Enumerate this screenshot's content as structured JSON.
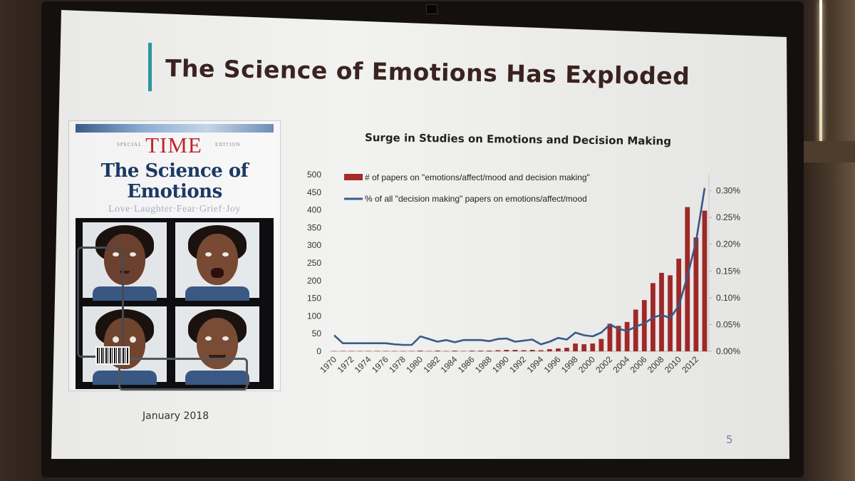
{
  "slide": {
    "title": "The Science of Emotions Has Exploded",
    "date": "January 2018",
    "page_number": "5"
  },
  "magazine": {
    "special": "SPECIAL",
    "brand": "TIME",
    "edition": "EDITION",
    "headline_line1": "The Science of",
    "headline_line2": "Emotions",
    "tagline": "Love·Laughter·Fear·Grief·Joy"
  },
  "colors": {
    "bar": "#a52a2a",
    "line": "#3b5b8c",
    "accent": "#2c9aa0",
    "title": "#3a2320"
  },
  "chart_data": {
    "type": "bar",
    "title": "Surge in Studies on Emotions and Decision Making",
    "xlabel": "",
    "ylabel": "",
    "ylim": [
      0,
      500
    ],
    "y2lim": [
      0,
      0.0033
    ],
    "y_ticks": [
      "0",
      "50",
      "100",
      "150",
      "200",
      "250",
      "300",
      "350",
      "400",
      "450",
      "500"
    ],
    "y2_ticks": [
      "0.00%",
      "0.05%",
      "0.10%",
      "0.15%",
      "0.20%",
      "0.25%",
      "0.30%"
    ],
    "x_tick_labels": [
      "1970",
      "1972",
      "1974",
      "1976",
      "1978",
      "1980",
      "1982",
      "1984",
      "1986",
      "1988",
      "1990",
      "1992",
      "1994",
      "1996",
      "1998",
      "2000",
      "2002",
      "2004",
      "2006",
      "2008",
      "2010",
      "2012"
    ],
    "legend_position": "top-left",
    "categories": [
      1970,
      1971,
      1972,
      1973,
      1974,
      1975,
      1976,
      1977,
      1978,
      1979,
      1980,
      1981,
      1982,
      1983,
      1984,
      1985,
      1986,
      1987,
      1988,
      1989,
      1990,
      1991,
      1992,
      1993,
      1994,
      1995,
      1996,
      1997,
      1998,
      1999,
      2000,
      2001,
      2002,
      2003,
      2004,
      2005,
      2006,
      2007,
      2008,
      2009,
      2010,
      2011,
      2012,
      2013
    ],
    "series": [
      {
        "name": "# of papers on \"emotions/affect/mood and decision making\"",
        "kind": "bar",
        "axis": "left",
        "values": [
          1,
          0,
          0,
          0,
          0,
          0,
          0,
          0,
          0,
          0,
          2,
          1,
          2,
          1,
          2,
          1,
          2,
          2,
          2,
          3,
          4,
          4,
          3,
          4,
          3,
          6,
          8,
          10,
          22,
          20,
          22,
          35,
          78,
          72,
          83,
          118,
          145,
          193,
          222,
          215,
          262,
          408,
          322,
          398
        ]
      },
      {
        "name": "% of all \"decision making\" papers on emotions/affect/mood",
        "kind": "line",
        "axis": "right",
        "values": [
          0.0003,
          0.00015,
          0.00015,
          0.00015,
          0.00015,
          0.00015,
          0.00015,
          0.00013,
          0.00012,
          0.00012,
          0.00028,
          0.00023,
          0.00018,
          0.00021,
          0.00017,
          0.00021,
          0.00021,
          0.00021,
          0.00019,
          0.00023,
          0.00024,
          0.00018,
          0.0002,
          0.00022,
          0.00013,
          0.00018,
          0.00025,
          0.00022,
          0.00035,
          0.0003,
          0.00028,
          0.00035,
          0.0005,
          0.00042,
          0.00038,
          0.00046,
          0.00052,
          0.00063,
          0.00068,
          0.00062,
          0.00085,
          0.0014,
          0.00205,
          0.00305
        ]
      }
    ]
  }
}
